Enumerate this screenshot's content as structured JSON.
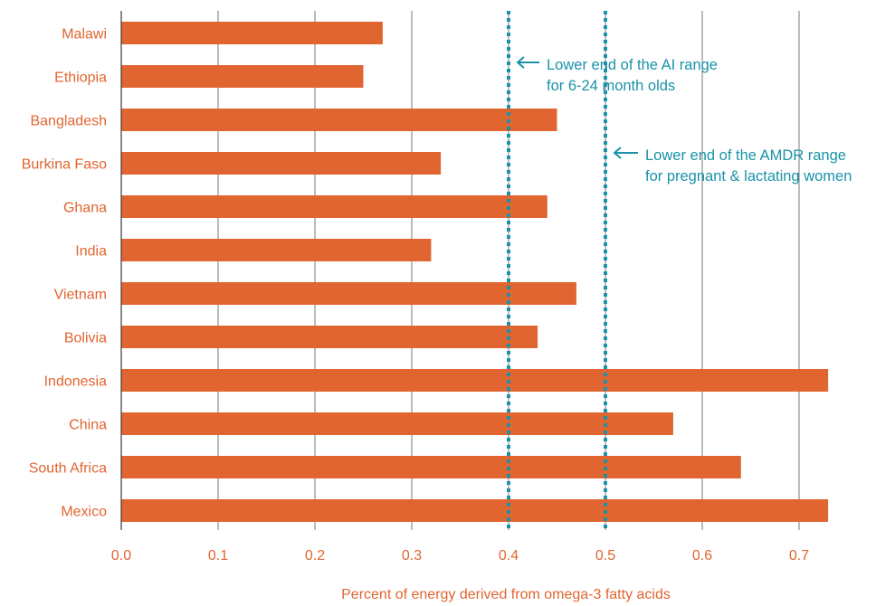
{
  "chart_data": {
    "type": "bar",
    "orientation": "horizontal",
    "categories": [
      "Malawi",
      "Ethiopia",
      "Bangladesh",
      "Burkina Faso",
      "Ghana",
      "India",
      "Vietnam",
      "Bolivia",
      "Indonesia",
      "China",
      "South Africa",
      "Mexico"
    ],
    "values": [
      0.27,
      0.25,
      0.45,
      0.33,
      0.44,
      0.32,
      0.47,
      0.43,
      0.73,
      0.57,
      0.64,
      0.73
    ],
    "xlabel": "Percent of energy derived from omega-3 fatty acids",
    "ylabel": "",
    "xlim": [
      0,
      0.8
    ],
    "xticks": [
      "0.0",
      "0.1",
      "0.2",
      "0.3",
      "0.4",
      "0.5",
      "0.6",
      "0.7"
    ],
    "grid": "vertical",
    "reference_lines": [
      {
        "value": 0.4,
        "label_lines": [
          "Lower end of the AI range",
          "for 6-24 month olds"
        ]
      },
      {
        "value": 0.5,
        "label_lines": [
          "Lower end of the AMDR range",
          "for pregnant & lactating women"
        ]
      }
    ],
    "colors": {
      "bar": "#e06530",
      "label": "#e06530",
      "reference": "#1a93a8",
      "grid": "#7a7a7a",
      "axis": "#3c3c3c"
    }
  }
}
